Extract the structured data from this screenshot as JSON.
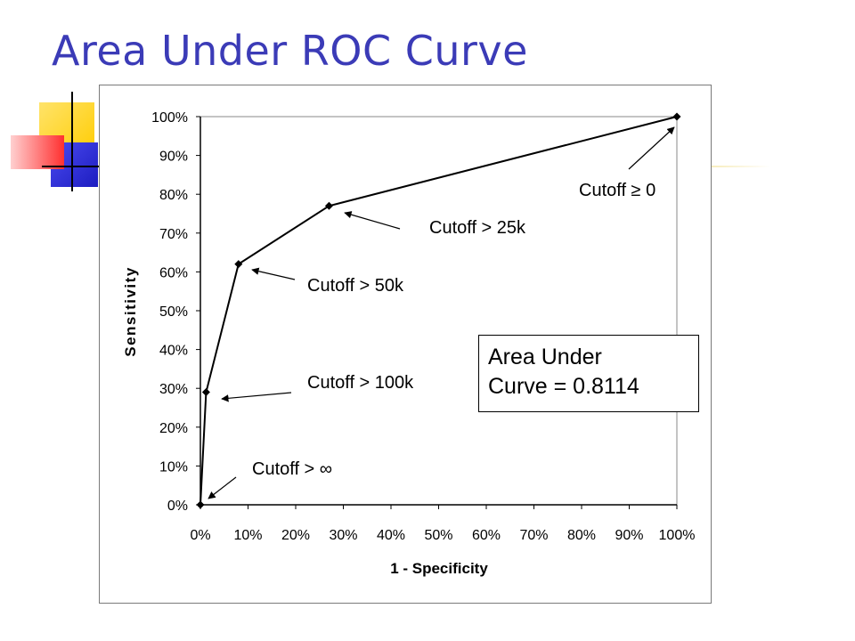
{
  "slide": {
    "title": "Area Under ROC Curve"
  },
  "colors": {
    "title": "#3b3bb7",
    "deco_yellow": "#ffd200",
    "deco_blue": "#2b2bd6",
    "deco_red": "#ff3b3b"
  },
  "auc_box": {
    "line1": "Area Under",
    "line2": "Curve = 0.8114"
  },
  "chart_data": {
    "type": "line",
    "xlabel": "1 - Specificity",
    "ylabel": "Sensitivity",
    "xlim": [
      0,
      100
    ],
    "ylim": [
      0,
      100
    ],
    "x_ticks": [
      "0%",
      "10%",
      "20%",
      "30%",
      "40%",
      "50%",
      "60%",
      "70%",
      "80%",
      "90%",
      "100%"
    ],
    "y_ticks": [
      "0%",
      "10%",
      "20%",
      "30%",
      "40%",
      "50%",
      "60%",
      "70%",
      "80%",
      "90%",
      "100%"
    ],
    "grid": false,
    "series": [
      {
        "x": [
          0,
          1.2,
          8,
          27,
          100
        ],
        "y": [
          0,
          29,
          62,
          77,
          100
        ]
      }
    ],
    "annotations": [
      {
        "text": "Cutoff > ∞",
        "point_index": 0
      },
      {
        "text": "Cutoff > 100k",
        "point_index": 1
      },
      {
        "text": "Cutoff > 50k",
        "point_index": 2
      },
      {
        "text": "Cutoff > 25k",
        "point_index": 3
      },
      {
        "text": "Cutoff ≥ 0",
        "point_index": 4
      }
    ]
  }
}
